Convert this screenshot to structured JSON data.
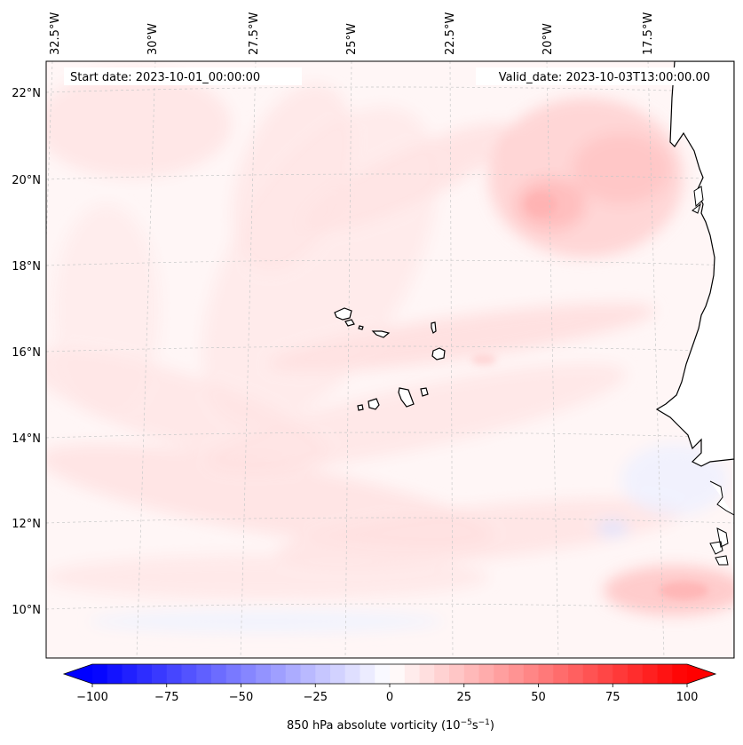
{
  "header": {
    "start_date": "Start date: 2023-10-01_00:00:00",
    "valid_date": "Valid_date: 2023-10-03T13:00:00.00"
  },
  "map": {
    "top_longitude_labels": [
      "32.5°W",
      "30°W",
      "27.5°W",
      "25°W",
      "22.5°W",
      "20°W",
      "17.5°W"
    ],
    "left_latitude_labels": [
      "22°N",
      "20°N",
      "18°N",
      "16°N",
      "14°N",
      "12°N",
      "10°N"
    ],
    "field": "850 hPa absolute vorticity",
    "gridlines": "dashed, light gray",
    "coastline_color": "#000000",
    "land_color": "#ffffff"
  },
  "colorbar": {
    "label": "850 hPa absolute vorticity (10",
    "label_exponent": "−5",
    "label_unit_mid": "s",
    "label_unit_exp": "−1",
    "label_close": ")",
    "tick_labels": [
      "−100",
      "−75",
      "−50",
      "−25",
      "0",
      "25",
      "50",
      "75",
      "100"
    ],
    "min": -100,
    "max": 100,
    "step": 5,
    "colormap": "bwr",
    "extend": "both",
    "low_color": "#0000ff",
    "mid_color": "#ffffff",
    "high_color": "#ff0000"
  }
}
